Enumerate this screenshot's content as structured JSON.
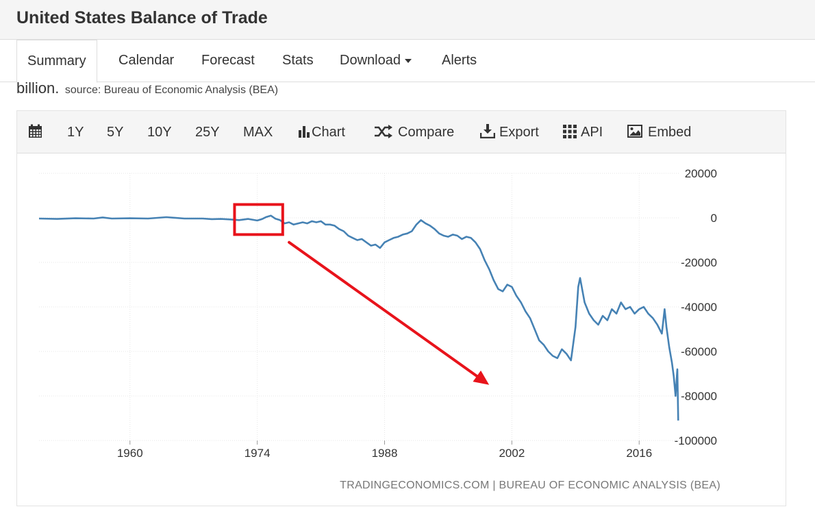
{
  "page": {
    "title": "United States Balance of Trade"
  },
  "tabs": [
    {
      "label": "Summary",
      "active": true
    },
    {
      "label": "Calendar"
    },
    {
      "label": "Forecast"
    },
    {
      "label": "Stats"
    },
    {
      "label": "Download",
      "has_dropdown": true
    },
    {
      "label": "Alerts"
    }
  ],
  "description": {
    "text_tail": "billion.",
    "source": "source: Bureau of Economic Analysis (BEA)"
  },
  "toolbar": {
    "calendar_icon": "calendar-icon",
    "ranges": [
      "1Y",
      "5Y",
      "10Y",
      "25Y",
      "MAX"
    ],
    "chart_label": "Chart",
    "compare_label": "Compare",
    "export_label": "Export",
    "api_label": "API",
    "embed_label": "Embed"
  },
  "colors": {
    "series": "#4682b4",
    "annotation": "#e8131b",
    "grid": "#e6e6e6"
  },
  "chart_data": {
    "type": "line",
    "title": "",
    "xlabel": "",
    "ylabel": "",
    "credit": "TRADINGECONOMICS.COM | BUREAU OF ECONOMIC ANALYSIS (BEA)",
    "x_ticks": [
      "1960",
      "1974",
      "1988",
      "2002",
      "2016"
    ],
    "y_ticks": [
      "20000",
      "0",
      "-20000",
      "-40000",
      "-60000",
      "-80000",
      "-100000"
    ],
    "ylim": [
      -100000,
      20000
    ],
    "xlim": [
      1950,
      2020.5
    ],
    "grid": true,
    "annotations": [
      {
        "type": "highlight-box",
        "x_range": [
          1971.5,
          1976.8
        ],
        "y_range": [
          -7500,
          6000
        ]
      },
      {
        "type": "arrow",
        "from": [
          1977.5,
          -11000
        ],
        "to": [
          1999.5,
          -75000
        ]
      }
    ],
    "series": [
      {
        "values": [
          [
            1950.0,
            -300
          ],
          [
            1952.0,
            -500
          ],
          [
            1954.0,
            -200
          ],
          [
            1956.0,
            -300
          ],
          [
            1957.0,
            200
          ],
          [
            1958.0,
            -300
          ],
          [
            1960.0,
            -200
          ],
          [
            1962.0,
            -300
          ],
          [
            1964.0,
            300
          ],
          [
            1966.0,
            -300
          ],
          [
            1968.0,
            -300
          ],
          [
            1969.0,
            -600
          ],
          [
            1970.0,
            -500
          ],
          [
            1971.0,
            -700
          ],
          [
            1972.0,
            -1000
          ],
          [
            1973.0,
            -500
          ],
          [
            1974.0,
            -1200
          ],
          [
            1974.5,
            -600
          ],
          [
            1975.0,
            400
          ],
          [
            1975.5,
            1000
          ],
          [
            1976.0,
            -400
          ],
          [
            1976.5,
            -1000
          ],
          [
            1977.0,
            -2500
          ],
          [
            1977.5,
            -2000
          ],
          [
            1978.0,
            -3000
          ],
          [
            1978.5,
            -2500
          ],
          [
            1979.0,
            -2000
          ],
          [
            1979.5,
            -2500
          ],
          [
            1980.0,
            -1500
          ],
          [
            1980.5,
            -2000
          ],
          [
            1981.0,
            -1500
          ],
          [
            1981.5,
            -3000
          ],
          [
            1982.0,
            -3000
          ],
          [
            1982.5,
            -3500
          ],
          [
            1983.0,
            -5000
          ],
          [
            1983.5,
            -6000
          ],
          [
            1984.0,
            -8000
          ],
          [
            1984.5,
            -9000
          ],
          [
            1985.0,
            -10000
          ],
          [
            1985.5,
            -9500
          ],
          [
            1986.0,
            -11000
          ],
          [
            1986.5,
            -12500
          ],
          [
            1987.0,
            -12000
          ],
          [
            1987.5,
            -13500
          ],
          [
            1988.0,
            -11000
          ],
          [
            1988.5,
            -10000
          ],
          [
            1989.0,
            -9000
          ],
          [
            1989.5,
            -8500
          ],
          [
            1990.0,
            -7500
          ],
          [
            1990.5,
            -7000
          ],
          [
            1991.0,
            -6000
          ],
          [
            1991.5,
            -3000
          ],
          [
            1992.0,
            -1000
          ],
          [
            1992.5,
            -2500
          ],
          [
            1993.0,
            -3500
          ],
          [
            1993.5,
            -5000
          ],
          [
            1994.0,
            -7000
          ],
          [
            1994.5,
            -8000
          ],
          [
            1995.0,
            -8500
          ],
          [
            1995.5,
            -7500
          ],
          [
            1996.0,
            -8000
          ],
          [
            1996.5,
            -9500
          ],
          [
            1997.0,
            -8500
          ],
          [
            1997.5,
            -9000
          ],
          [
            1998.0,
            -11000
          ],
          [
            1998.5,
            -14000
          ],
          [
            1999.0,
            -19000
          ],
          [
            1999.5,
            -23000
          ],
          [
            2000.0,
            -28000
          ],
          [
            2000.5,
            -32000
          ],
          [
            2001.0,
            -33000
          ],
          [
            2001.5,
            -30000
          ],
          [
            2002.0,
            -31000
          ],
          [
            2002.5,
            -35000
          ],
          [
            2003.0,
            -38000
          ],
          [
            2003.5,
            -42000
          ],
          [
            2004.0,
            -45000
          ],
          [
            2004.5,
            -50000
          ],
          [
            2005.0,
            -55000
          ],
          [
            2005.5,
            -57000
          ],
          [
            2006.0,
            -60000
          ],
          [
            2006.5,
            -62000
          ],
          [
            2007.0,
            -63000
          ],
          [
            2007.5,
            -59000
          ],
          [
            2008.0,
            -61000
          ],
          [
            2008.5,
            -64000
          ],
          [
            2009.0,
            -49000
          ],
          [
            2009.3,
            -31000
          ],
          [
            2009.5,
            -27000
          ],
          [
            2010.0,
            -38000
          ],
          [
            2010.5,
            -43000
          ],
          [
            2011.0,
            -46000
          ],
          [
            2011.5,
            -48000
          ],
          [
            2012.0,
            -44000
          ],
          [
            2012.5,
            -46000
          ],
          [
            2013.0,
            -41000
          ],
          [
            2013.5,
            -43000
          ],
          [
            2014.0,
            -38000
          ],
          [
            2014.5,
            -41000
          ],
          [
            2015.0,
            -40000
          ],
          [
            2015.5,
            -43000
          ],
          [
            2016.0,
            -41000
          ],
          [
            2016.5,
            -40000
          ],
          [
            2017.0,
            -43000
          ],
          [
            2017.5,
            -45000
          ],
          [
            2018.0,
            -48000
          ],
          [
            2018.5,
            -52000
          ],
          [
            2018.8,
            -41000
          ],
          [
            2019.0,
            -49000
          ],
          [
            2019.3,
            -58000
          ],
          [
            2019.6,
            -65000
          ],
          [
            2019.8,
            -71000
          ],
          [
            2020.0,
            -80000
          ],
          [
            2020.2,
            -68000
          ],
          [
            2020.3,
            -91000
          ]
        ]
      }
    ]
  }
}
